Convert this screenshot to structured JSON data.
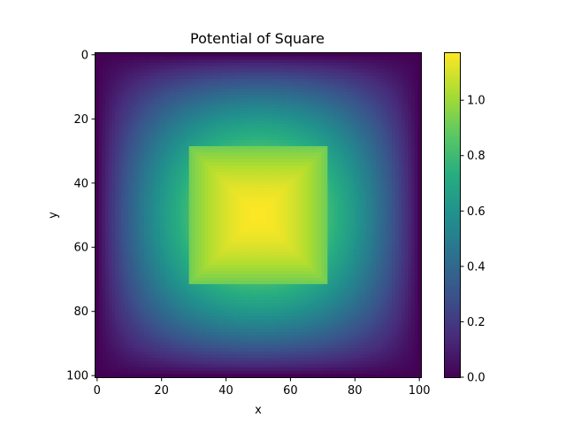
{
  "chart_data": {
    "type": "heatmap",
    "title": "Potential of Square",
    "xlabel": "x",
    "ylabel": "y",
    "grid": {
      "nx": 101,
      "ny": 101,
      "x_range": [
        0,
        100
      ],
      "y_range": [
        0,
        100
      ],
      "y_axis_inverted": true
    },
    "square_region": {
      "x": [
        29,
        71
      ],
      "y": [
        29,
        71
      ]
    },
    "field": {
      "peak_value": 1.17,
      "peak_location": [
        50,
        50
      ],
      "square_edge_value": 0.92,
      "boundary_value": 0.0
    },
    "x_ticks": [
      "0",
      "20",
      "40",
      "60",
      "80",
      "100"
    ],
    "x_tick_values": [
      0,
      20,
      40,
      60,
      80,
      100
    ],
    "y_ticks": [
      "0",
      "20",
      "40",
      "60",
      "80",
      "100"
    ],
    "y_tick_values": [
      0,
      20,
      40,
      60,
      80,
      100
    ],
    "colorbar": {
      "colormap": "viridis",
      "range": [
        0.0,
        1.17
      ],
      "ticks": [
        "0.0",
        "0.2",
        "0.4",
        "0.6",
        "0.8",
        "1.0"
      ],
      "tick_values": [
        0.0,
        0.2,
        0.4,
        0.6,
        0.8,
        1.0
      ]
    }
  }
}
